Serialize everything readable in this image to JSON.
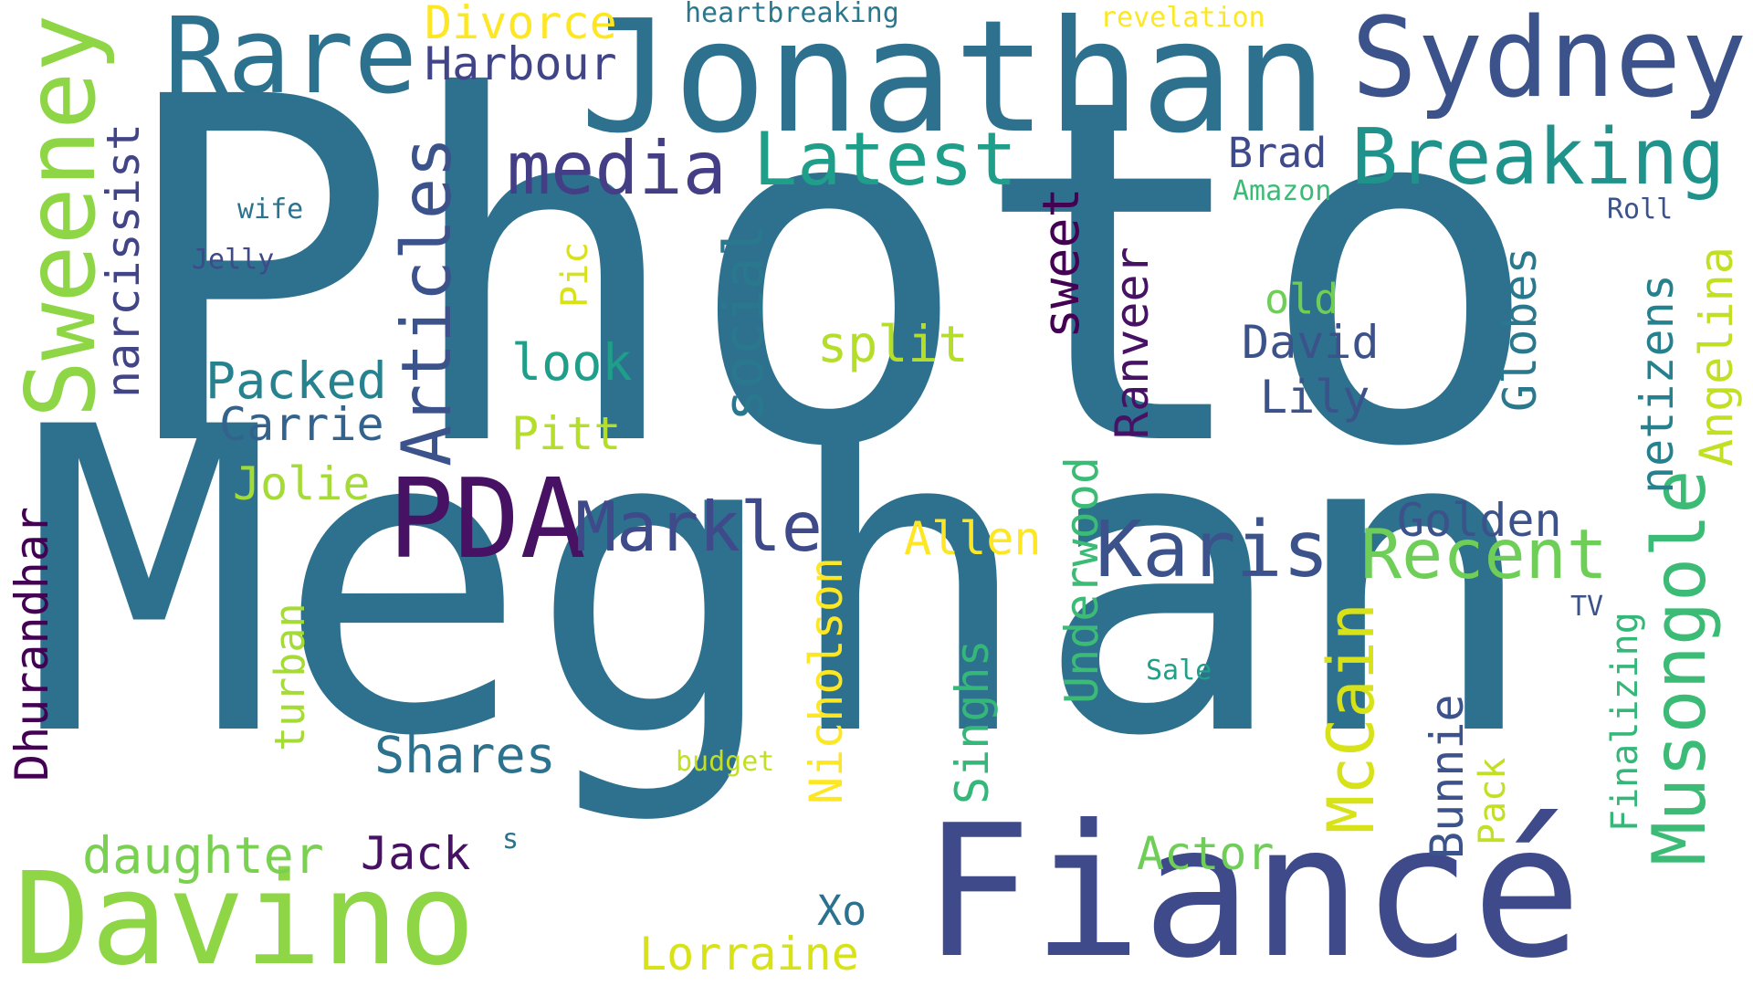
{
  "words": [
    {
      "text": "Photo",
      "color": "#2d718e",
      "rotate": 0
    },
    {
      "text": "Meghan",
      "color": "#2d718e",
      "rotate": 0
    },
    {
      "text": "Jonathan",
      "color": "#2d718e",
      "rotate": 0
    },
    {
      "text": "Fiancé",
      "color": "#3e4a89",
      "rotate": 0
    },
    {
      "text": "Davino",
      "color": "#8ed645",
      "rotate": 0
    },
    {
      "text": "Sydney",
      "color": "#3b528b",
      "rotate": 0
    },
    {
      "text": "Rare",
      "color": "#2c728e",
      "rotate": 0
    },
    {
      "text": "Sweeney",
      "color": "#8ed645",
      "rotate": -90
    },
    {
      "text": "PDA",
      "color": "#471164",
      "rotate": 0
    },
    {
      "text": "Musongole",
      "color": "#3bbb75",
      "rotate": -90
    },
    {
      "text": "Karis",
      "color": "#3b528b",
      "rotate": 0
    },
    {
      "text": "Breaking",
      "color": "#20928c",
      "rotate": 0
    },
    {
      "text": "Latest",
      "color": "#1f9e89",
      "rotate": 0
    },
    {
      "text": "media",
      "color": "#433e85",
      "rotate": 0
    },
    {
      "text": "Articles",
      "color": "#3b528b",
      "rotate": -90
    },
    {
      "text": "Recent",
      "color": "#6ece58",
      "rotate": 0
    },
    {
      "text": "Markle",
      "color": "#3e4a89",
      "rotate": 0
    },
    {
      "text": "McCain",
      "color": "#d8e219",
      "rotate": -90
    },
    {
      "text": "social",
      "color": "#2a788e",
      "rotate": -90
    },
    {
      "text": "Dhurandhar",
      "color": "#440154",
      "rotate": -90
    },
    {
      "text": "narcissist",
      "color": "#414487",
      "rotate": -90
    },
    {
      "text": "Angelina",
      "color": "#c2df23",
      "rotate": -90
    },
    {
      "text": "netizens",
      "color": "#26818e",
      "rotate": -90
    },
    {
      "text": "Finalizing",
      "color": "#35b779",
      "rotate": -90
    },
    {
      "text": "Underwood",
      "color": "#3bbb75",
      "rotate": -90
    },
    {
      "text": "Nicholson",
      "color": "#fde725",
      "rotate": -90
    },
    {
      "text": "Singhs",
      "color": "#35b779",
      "rotate": -90
    },
    {
      "text": "Bunnie",
      "color": "#3b528b",
      "rotate": -90
    },
    {
      "text": "Lorraine",
      "color": "#d8e219",
      "rotate": 0
    },
    {
      "text": "daughter",
      "color": "#7ad151",
      "rotate": 0
    },
    {
      "text": "sweet",
      "color": "#440154",
      "rotate": -90
    },
    {
      "text": "Harbour",
      "color": "#414487",
      "rotate": 0
    },
    {
      "text": "Divorce",
      "color": "#fde725",
      "rotate": 0
    },
    {
      "text": "Shares",
      "color": "#2c728e",
      "rotate": 0
    },
    {
      "text": "Packed",
      "color": "#26828e",
      "rotate": 0
    },
    {
      "text": "Carrie",
      "color": "#33638d",
      "rotate": 0
    },
    {
      "text": "Golden",
      "color": "#3b528b",
      "rotate": 0
    },
    {
      "text": "David",
      "color": "#3b528b",
      "rotate": 0
    },
    {
      "text": "split",
      "color": "#b5de2b",
      "rotate": 0
    },
    {
      "text": "Globes",
      "color": "#2a788e",
      "rotate": -90
    },
    {
      "text": "Ranveer",
      "color": "#471164",
      "rotate": -90
    },
    {
      "text": "Actor",
      "color": "#6ece58",
      "rotate": 0
    },
    {
      "text": "Jolie",
      "color": "#a5db36",
      "rotate": 0
    },
    {
      "text": "look",
      "color": "#1f9e89",
      "rotate": 0
    },
    {
      "text": "Allen",
      "color": "#fde725",
      "rotate": 0
    },
    {
      "text": "Pitt",
      "color": "#b5de2b",
      "rotate": 0
    },
    {
      "text": "Jack",
      "color": "#471164",
      "rotate": 0
    },
    {
      "text": "Lily",
      "color": "#3b528b",
      "rotate": 0
    },
    {
      "text": "Brad",
      "color": "#3e4a89",
      "rotate": 0
    },
    {
      "text": "turban",
      "color": "#a5db36",
      "rotate": -90
    },
    {
      "text": "Pack",
      "color": "#c2df23",
      "rotate": -90
    },
    {
      "text": "old",
      "color": "#6ece58",
      "rotate": 0
    },
    {
      "text": "Xo",
      "color": "#2c728e",
      "rotate": 0
    },
    {
      "text": "Pic",
      "color": "#d8e219",
      "rotate": -90
    },
    {
      "text": "heartbreaking",
      "color": "#2a788e",
      "rotate": 0
    },
    {
      "text": "revelation",
      "color": "#fde725",
      "rotate": 0
    },
    {
      "text": "Amazon",
      "color": "#3bbb75",
      "rotate": 0
    },
    {
      "text": "wife",
      "color": "#2c728e",
      "rotate": 0
    },
    {
      "text": "Jelly",
      "color": "#3e4a89",
      "rotate": 0
    },
    {
      "text": "Roll",
      "color": "#3b528b",
      "rotate": 0
    },
    {
      "text": "budget",
      "color": "#c2df23",
      "rotate": 0
    },
    {
      "text": "Sale",
      "color": "#1fa088",
      "rotate": 0
    },
    {
      "text": "TV",
      "color": "#3b528b",
      "rotate": 0
    },
    {
      "text": "s",
      "color": "#2c728e",
      "rotate": 0
    }
  ]
}
